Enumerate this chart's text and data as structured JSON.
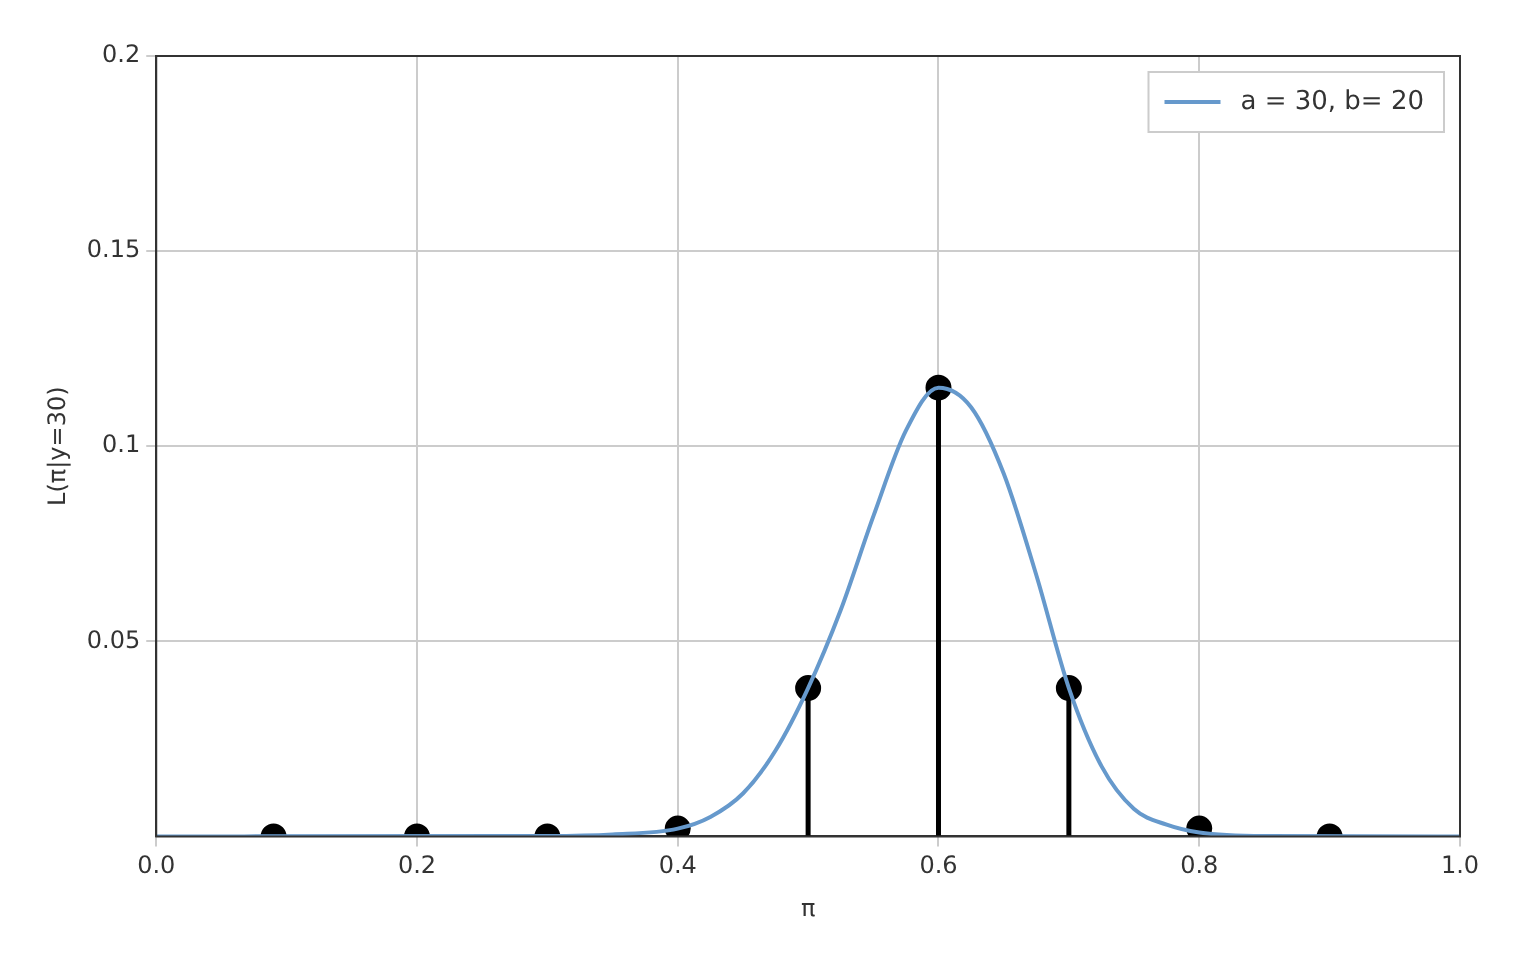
{
  "chart_data": {
    "type": "line",
    "xlabel": "π",
    "ylabel": "L(π|y=30)",
    "xlim": [
      0,
      1
    ],
    "xticks": [
      {
        "value": 0,
        "label": "0.0"
      },
      {
        "value": 0.2,
        "label": "0.2"
      },
      {
        "value": 0.4,
        "label": "0.4"
      },
      {
        "value": 0.6,
        "label": "0.6"
      },
      {
        "value": 0.8,
        "label": "0.8"
      },
      {
        "value": 1,
        "label": "1.0"
      }
    ],
    "ylim": [
      0,
      0.2
    ],
    "yticks": [
      0.05,
      0.1,
      0.15,
      0.2
    ],
    "grid": true,
    "legend": "top right",
    "series": [
      {
        "name": "a = 30, b= 20",
        "color": "#6699cc",
        "x": [
          0,
          0.3,
          0.35,
          0.4,
          0.425,
          0.45,
          0.475,
          0.5,
          0.525,
          0.55,
          0.575,
          0.6,
          0.625,
          0.65,
          0.675,
          0.7,
          0.725,
          0.75,
          0.775,
          0.8,
          0.85,
          1
        ],
        "values": [
          0,
          0.0001,
          0.0005,
          0.002,
          0.005,
          0.011,
          0.022,
          0.038,
          0.058,
          0.082,
          0.104,
          0.115,
          0.11,
          0.093,
          0.067,
          0.038,
          0.018,
          0.007,
          0.003,
          0.001,
          0.0001,
          0
        ]
      },
      {
        "type": "lollipop",
        "color": "#000000",
        "marker": "circle",
        "x": [
          0.09,
          0.2,
          0.3,
          0.4,
          0.5,
          0.6,
          0.7,
          0.8,
          0.9
        ],
        "values": [
          0,
          0,
          0,
          0.002,
          0.038,
          0.115,
          0.038,
          0.002,
          0
        ]
      }
    ]
  }
}
